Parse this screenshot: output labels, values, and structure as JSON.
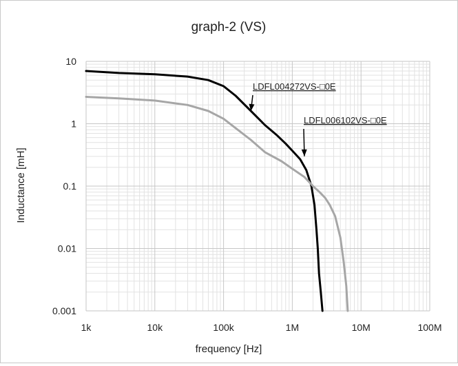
{
  "chart_data": {
    "type": "line",
    "title": "graph-2 (VS)",
    "xlabel": "frequency [Hz]",
    "ylabel": "Inductance [mH]",
    "x_scale": "log",
    "y_scale": "log",
    "xlim": [
      1000,
      100000000
    ],
    "ylim": [
      0.001,
      10
    ],
    "x_ticks": [
      "1k",
      "10k",
      "100k",
      "1M",
      "10M",
      "100M"
    ],
    "y_ticks": [
      "10",
      "1",
      "0.1",
      "0.01",
      "0.001"
    ],
    "grid": true,
    "legend": "none",
    "series": [
      {
        "name": "LDFL004272VS-□0E",
        "color": "#000000",
        "points": [
          [
            1000,
            7.0
          ],
          [
            3000,
            6.5
          ],
          [
            10000,
            6.2
          ],
          [
            30000,
            5.7
          ],
          [
            60000,
            5.0
          ],
          [
            100000,
            4.0
          ],
          [
            150000,
            2.8
          ],
          [
            250000,
            1.6
          ],
          [
            400000,
            0.95
          ],
          [
            600000,
            0.65
          ],
          [
            800000,
            0.48
          ],
          [
            1000000,
            0.37
          ],
          [
            1300000,
            0.27
          ],
          [
            1600000,
            0.18
          ],
          [
            1900000,
            0.1
          ],
          [
            2100000,
            0.05
          ],
          [
            2250000,
            0.02
          ],
          [
            2350000,
            0.01
          ],
          [
            2450000,
            0.004
          ],
          [
            2600000,
            0.002
          ],
          [
            2750000,
            0.001
          ]
        ]
      },
      {
        "name": "LDFL006102VS-□0E",
        "color": "#a6a6a6",
        "points": [
          [
            1000,
            2.7
          ],
          [
            3000,
            2.55
          ],
          [
            10000,
            2.35
          ],
          [
            30000,
            2.0
          ],
          [
            60000,
            1.6
          ],
          [
            100000,
            1.2
          ],
          [
            150000,
            0.85
          ],
          [
            250000,
            0.55
          ],
          [
            400000,
            0.35
          ],
          [
            700000,
            0.25
          ],
          [
            1000000,
            0.19
          ],
          [
            1500000,
            0.14
          ],
          [
            2000000,
            0.1
          ],
          [
            2500000,
            0.08
          ],
          [
            3000000,
            0.065
          ],
          [
            3500000,
            0.05
          ],
          [
            4200000,
            0.033
          ],
          [
            5000000,
            0.015
          ],
          [
            5600000,
            0.006
          ],
          [
            6100000,
            0.0025
          ],
          [
            6400000,
            0.001
          ]
        ]
      }
    ],
    "annotations": [
      {
        "text": "LDFL004272VS-□0E",
        "series": 0,
        "arrow_to": [
          250000,
          1.6
        ]
      },
      {
        "text": "LDFL006102VS-□0E",
        "series": 1,
        "arrow_to": [
          1500000,
          0.3
        ]
      }
    ]
  }
}
